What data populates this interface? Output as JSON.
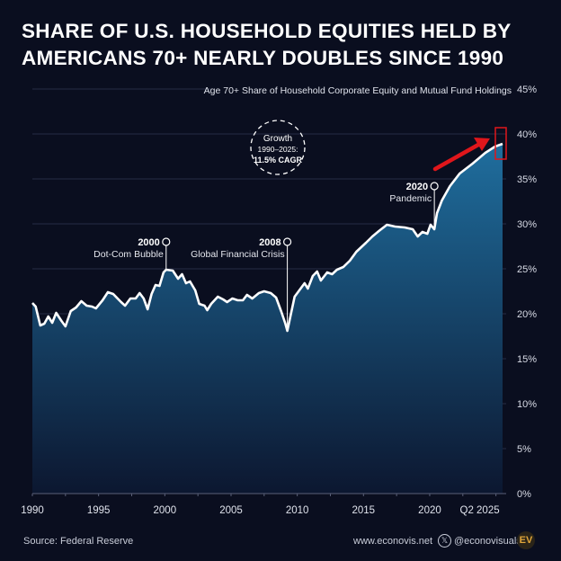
{
  "title_lines": [
    "SHARE OF U.S. HOUSEHOLD EQUITIES HELD BY",
    "AMERICANS 70+ NEARLY DOUBLES SINCE 1990"
  ],
  "footer": {
    "source": "Source: Federal Reserve",
    "website": "www.econovis.net",
    "handle": "@econovisuals",
    "x_icon": "x-logo-icon",
    "logo": "EV"
  },
  "colors": {
    "background": "#0a0e1f",
    "line": "#ffffff",
    "area_top": "#1f6e9e",
    "area_bottom": "#0c1730",
    "highlight": "#e0161b",
    "grid": "#2a3048",
    "logo": "#e0a63a"
  },
  "chart_data": {
    "type": "area",
    "title": "Age 70+ Share of Household Corporate Equity and Mutual Fund Holdings",
    "xlabel": "",
    "ylabel": "",
    "xlim": [
      1990,
      2025.5
    ],
    "ylim": [
      0,
      45
    ],
    "y_ticks": [
      0,
      5,
      10,
      15,
      20,
      25,
      30,
      35,
      40,
      45
    ],
    "y_tick_labels": [
      "0%",
      "5%",
      "10%",
      "15%",
      "20%",
      "25%",
      "30%",
      "35%",
      "40%",
      "45%"
    ],
    "x_ticks": [
      1990,
      1995,
      2000,
      2005,
      2010,
      2015,
      2020,
      2025
    ],
    "x_tick_labels": [
      "1990",
      "1995",
      "2000",
      "2005",
      "2010",
      "2015",
      "2020",
      "Q2 2025"
    ],
    "grid": true,
    "unit": "%",
    "series": [
      {
        "x": [
          1990.0,
          1990.25,
          1990.6,
          1990.9,
          1991.2,
          1991.5,
          1991.8,
          1992.2,
          1992.5,
          1992.9,
          1993.3,
          1993.7,
          1994.1,
          1994.5,
          1994.8,
          1995.3,
          1995.7,
          1996.1,
          1996.7,
          1997.0,
          1997.4,
          1997.8,
          1998.1,
          1998.4,
          1998.7,
          1999.0,
          1999.3,
          1999.6,
          1999.9,
          2000.1,
          2000.6,
          2001.0,
          2001.3,
          2001.6,
          2001.9,
          2002.3,
          2002.6,
          2003.0,
          2003.2,
          2003.5,
          2004.0,
          2004.4,
          2004.7,
          2005.1,
          2005.5,
          2005.9,
          2006.2,
          2006.6,
          2007.1,
          2007.5,
          2008.0,
          2008.4,
          2008.8,
          2009.1,
          2009.25,
          2009.8,
          2010.3,
          2010.55,
          2010.8,
          2011.17,
          2011.5,
          2011.78,
          2012.26,
          2012.63,
          2013.0,
          2013.48,
          2013.97,
          2014.46,
          2015.19,
          2015.67,
          2016.16,
          2016.77,
          2017.38,
          2018.11,
          2018.72,
          2019.09,
          2019.45,
          2019.82,
          2020.06,
          2020.35,
          2020.55,
          2020.92,
          2021.53,
          2022.26,
          2023.23,
          2024.2,
          2024.94,
          2025.5
        ],
        "values": [
          21.2,
          20.8,
          18.7,
          18.9,
          19.7,
          19.0,
          20.1,
          19.2,
          18.6,
          20.3,
          20.7,
          21.4,
          20.9,
          20.8,
          20.6,
          21.5,
          22.4,
          22.2,
          21.3,
          20.9,
          21.7,
          21.7,
          22.3,
          21.7,
          20.5,
          22.2,
          23.2,
          23.1,
          24.6,
          24.9,
          24.8,
          23.9,
          24.4,
          23.4,
          23.6,
          22.6,
          21.1,
          20.9,
          20.4,
          21.1,
          21.9,
          21.6,
          21.3,
          21.7,
          21.5,
          21.5,
          22.1,
          21.7,
          22.3,
          22.5,
          22.3,
          21.8,
          20.2,
          18.9,
          18.1,
          21.9,
          22.9,
          23.4,
          22.8,
          24.2,
          24.7,
          23.7,
          24.6,
          24.4,
          24.9,
          25.2,
          25.9,
          26.9,
          27.9,
          28.6,
          29.2,
          29.9,
          29.7,
          29.6,
          29.4,
          28.6,
          29.1,
          28.9,
          29.9,
          29.4,
          31.2,
          32.6,
          34.2,
          35.6,
          36.7,
          37.9,
          38.6,
          38.9
        ]
      }
    ],
    "annotations": [
      {
        "year_label": "2000",
        "text": "Dot-Com Bubble",
        "x": 2000.1,
        "y": 24.9
      },
      {
        "year_label": "2008",
        "text": "Global Financial Crisis",
        "x": 2009.25,
        "y": 18.1
      },
      {
        "year_label": "2020",
        "text": "Pandemic",
        "x": 2020.35,
        "y": 29.4
      }
    ],
    "callout": {
      "line1": "Growth",
      "line2": "1990–2025:",
      "line3": "11.5% CAGR"
    }
  }
}
